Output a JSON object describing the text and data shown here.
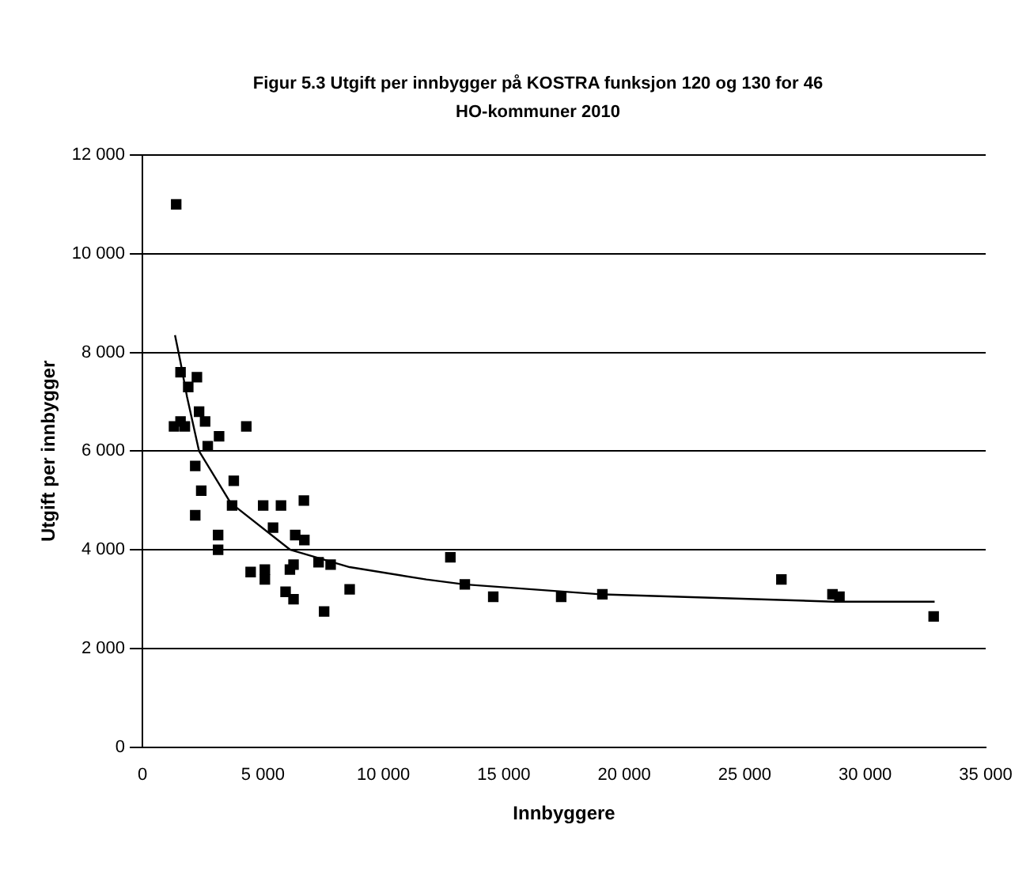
{
  "chart_data": {
    "type": "scatter",
    "title": "Figur 5.3  Utgift per innbygger på KOSTRA funksjon 120 og 130 for 46 HO-kommuner 2010",
    "xlabel": "Innbyggere",
    "ylabel": "Utgift per innbygger",
    "xlim": [
      0,
      35000
    ],
    "xticks": [
      0,
      {
        "value": 5000,
        "label": "5 000"
      },
      {
        "value": 10000,
        "label": "10 000"
      },
      {
        "value": 15000,
        "label": "15 000"
      },
      {
        "value": 20000,
        "label": "20 000"
      },
      {
        "value": 25000,
        "label": "25 000"
      },
      {
        "value": 30000,
        "label": "30 000"
      },
      {
        "value": 35000,
        "label": "35 000"
      }
    ],
    "ylim": [
      0,
      12000
    ],
    "yticks": [
      0,
      {
        "value": 2000,
        "label": "2 000"
      },
      {
        "value": 4000,
        "label": "4 000"
      },
      {
        "value": 6000,
        "label": "6 000"
      },
      {
        "value": 8000,
        "label": "8 000"
      },
      {
        "value": 10000,
        "label": "10 000"
      },
      {
        "value": 12000,
        "label": "12 000"
      }
    ],
    "grid": "y",
    "legend": false,
    "marker": "square",
    "series": [
      {
        "type": "scatter",
        "color": "#000000",
        "x": [
          1400,
          1580,
          2260,
          1900,
          2350,
          1580,
          1310,
          1760,
          2600,
          4310,
          3180,
          2710,
          2190,
          3790,
          2440,
          3720,
          5010,
          5750,
          6700,
          2190,
          5420,
          3140,
          3140,
          6340,
          6720,
          7310,
          7810,
          4490,
          5080,
          5080,
          6120,
          6270,
          5940,
          6270,
          8600,
          7540,
          12780,
          13380,
          14560,
          17380,
          19090,
          26520,
          28640,
          28930,
          32840
        ],
        "values": [
          11000,
          7600,
          7500,
          7300,
          6800,
          6600,
          6500,
          6500,
          6600,
          6500,
          6300,
          6100,
          5700,
          5400,
          5200,
          4900,
          4900,
          4900,
          5000,
          4700,
          4450,
          4300,
          4000,
          4300,
          4200,
          3750,
          3700,
          3550,
          3600,
          3400,
          3600,
          3700,
          3150,
          3000,
          3200,
          2750,
          3850,
          3300,
          3050,
          3050,
          3100,
          3400,
          3100,
          3050,
          2650
        ]
      },
      {
        "type": "line",
        "color": "#000000",
        "marker": "none",
        "line_style": "solid",
        "x": [
          1350,
          1580,
          1850,
          2350,
          3660,
          6140,
          8600,
          11780,
          13360,
          19000,
          28700,
          32880
        ],
        "values": [
          8350,
          7800,
          7100,
          6000,
          4950,
          4000,
          3650,
          3400,
          3300,
          3100,
          2950,
          2950
        ]
      }
    ]
  }
}
